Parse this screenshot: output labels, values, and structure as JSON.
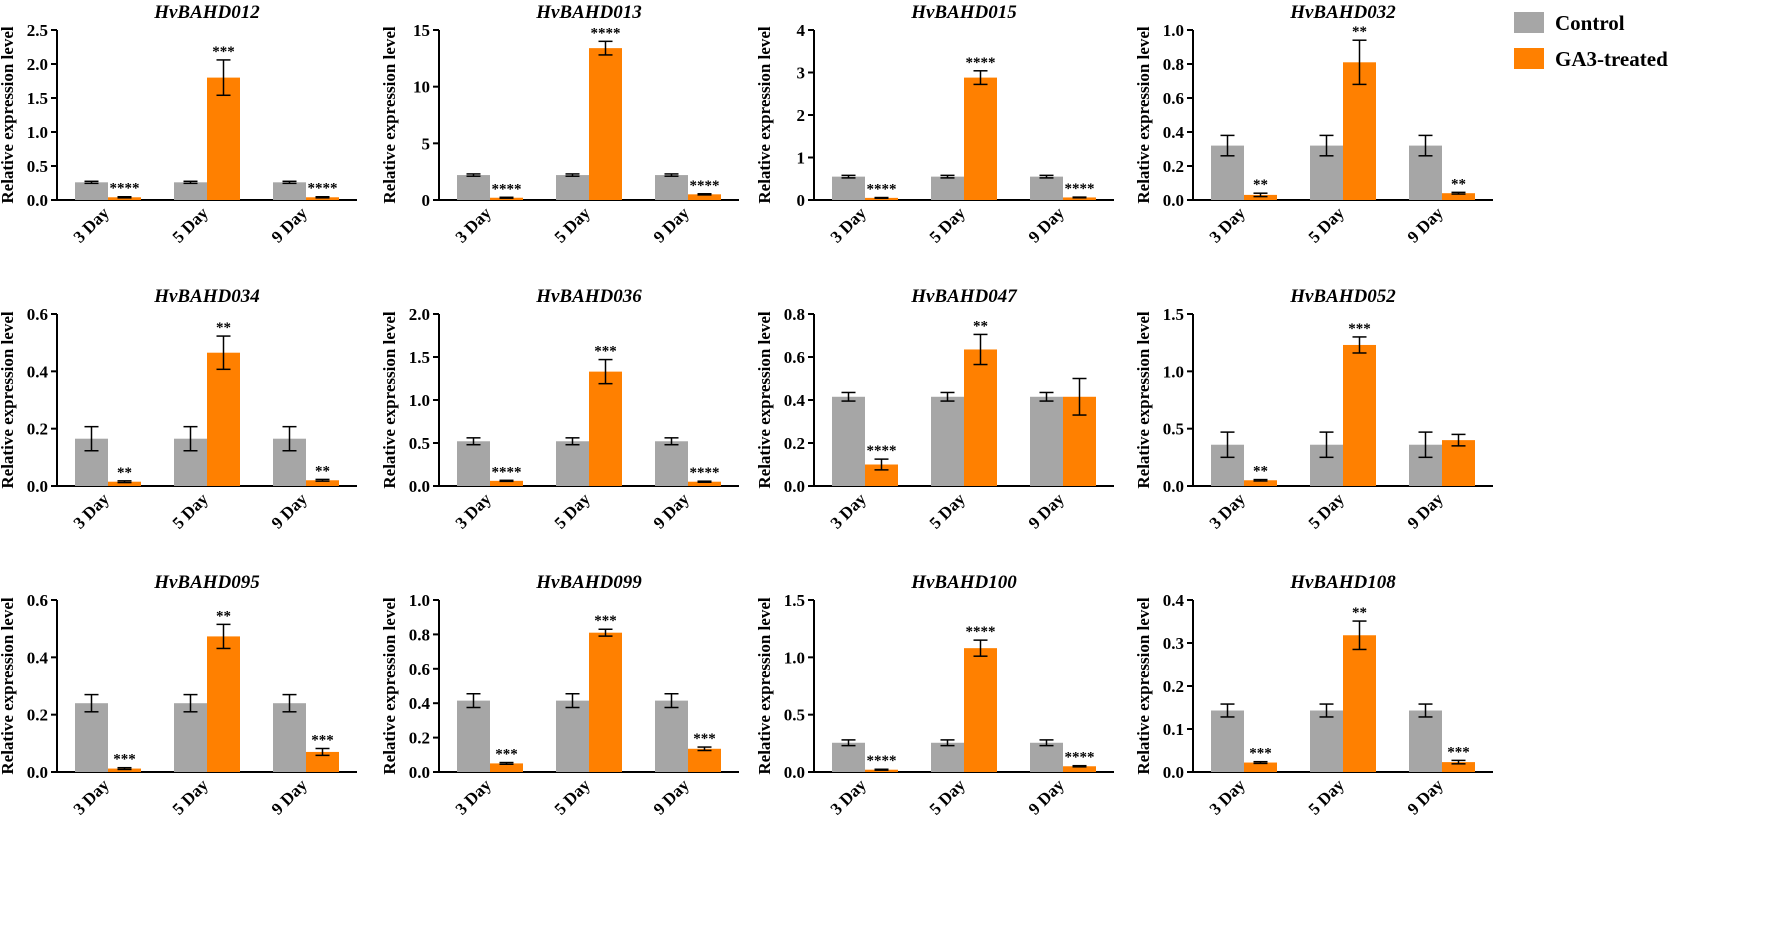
{
  "chart_data": [
    {
      "type": "bar",
      "title": "HvBAHD012",
      "ylabel": "Relative expression level",
      "categories": [
        "3 Day",
        "5 Day",
        "9 Day"
      ],
      "ylim": [
        0,
        2.5
      ],
      "yticks": [
        "0.0",
        "0.5",
        "1.0",
        "1.5",
        "2.0",
        "2.5"
      ],
      "yticks_v": [
        0,
        0.5,
        1,
        1.5,
        2,
        2.5
      ],
      "series": [
        {
          "name": "Control",
          "values": [
            0.26,
            0.26,
            0.26
          ],
          "errors": [
            0.015,
            0.015,
            0.015
          ]
        },
        {
          "name": "GA3-treated",
          "values": [
            0.04,
            1.8,
            0.04
          ],
          "errors": [
            0.008,
            0.26,
            0.008
          ],
          "sig": [
            "****",
            "***",
            "****"
          ]
        }
      ]
    },
    {
      "type": "bar",
      "title": "HvBAHD013",
      "ylabel": "Relative expression level",
      "categories": [
        "3 Day",
        "5 Day",
        "9 Day"
      ],
      "ylim": [
        0,
        15
      ],
      "yticks": [
        "0",
        "5",
        "10",
        "15"
      ],
      "yticks_v": [
        0,
        5,
        10,
        15
      ],
      "series": [
        {
          "name": "Control",
          "values": [
            2.2,
            2.2,
            2.2
          ],
          "errors": [
            0.1,
            0.1,
            0.1
          ]
        },
        {
          "name": "GA3-treated",
          "values": [
            0.2,
            13.4,
            0.5
          ],
          "errors": [
            0.04,
            0.6,
            0.05
          ],
          "sig": [
            "****",
            "****",
            "****"
          ]
        }
      ]
    },
    {
      "type": "bar",
      "title": "HvBAHD015",
      "ylabel": "Relative expression level",
      "categories": [
        "3 Day",
        "5 Day",
        "9 Day"
      ],
      "ylim": [
        0,
        4
      ],
      "yticks": [
        "0",
        "1",
        "2",
        "3",
        "4"
      ],
      "yticks_v": [
        0,
        1,
        2,
        3,
        4
      ],
      "series": [
        {
          "name": "Control",
          "values": [
            0.55,
            0.55,
            0.55
          ],
          "errors": [
            0.03,
            0.03,
            0.03
          ]
        },
        {
          "name": "GA3-treated",
          "values": [
            0.05,
            2.88,
            0.06
          ],
          "errors": [
            0.008,
            0.16,
            0.008
          ],
          "sig": [
            "****",
            "****",
            "****"
          ]
        }
      ]
    },
    {
      "type": "bar",
      "title": "HvBAHD032",
      "ylabel": "Relative expression level",
      "categories": [
        "3 Day",
        "5 Day",
        "9 Day"
      ],
      "ylim": [
        0,
        1.0
      ],
      "yticks": [
        "0.0",
        "0.2",
        "0.4",
        "0.6",
        "0.8",
        "1.0"
      ],
      "yticks_v": [
        0,
        0.2,
        0.4,
        0.6,
        0.8,
        1.0
      ],
      "series": [
        {
          "name": "Control",
          "values": [
            0.32,
            0.32,
            0.32
          ],
          "errors": [
            0.06,
            0.06,
            0.06
          ]
        },
        {
          "name": "GA3-treated",
          "values": [
            0.03,
            0.81,
            0.04
          ],
          "errors": [
            0.01,
            0.13,
            0.005
          ],
          "sig": [
            "**",
            "**",
            "**"
          ]
        }
      ]
    },
    {
      "type": "bar",
      "title": "HvBAHD034",
      "ylabel": "Relative expression level",
      "categories": [
        "3 Day",
        "5 Day",
        "9 Day"
      ],
      "ylim": [
        0,
        0.6
      ],
      "yticks": [
        "0.0",
        "0.2",
        "0.4",
        "0.6"
      ],
      "yticks_v": [
        0,
        0.2,
        0.4,
        0.6
      ],
      "series": [
        {
          "name": "Control",
          "values": [
            0.165,
            0.165,
            0.165
          ],
          "errors": [
            0.042,
            0.042,
            0.042
          ]
        },
        {
          "name": "GA3-treated",
          "values": [
            0.015,
            0.465,
            0.02
          ],
          "errors": [
            0.003,
            0.058,
            0.003
          ],
          "sig": [
            "**",
            "**",
            "**"
          ]
        }
      ]
    },
    {
      "type": "bar",
      "title": "HvBAHD036",
      "ylabel": "Relative expression level",
      "categories": [
        "3 Day",
        "5 Day",
        "9 Day"
      ],
      "ylim": [
        0,
        2.0
      ],
      "yticks": [
        "0.0",
        "0.5",
        "1.0",
        "1.5",
        "2.0"
      ],
      "yticks_v": [
        0,
        0.5,
        1,
        1.5,
        2
      ],
      "series": [
        {
          "name": "Control",
          "values": [
            0.52,
            0.52,
            0.52
          ],
          "errors": [
            0.04,
            0.04,
            0.04
          ]
        },
        {
          "name": "GA3-treated",
          "values": [
            0.06,
            1.33,
            0.05
          ],
          "errors": [
            0.006,
            0.14,
            0.006
          ],
          "sig": [
            "****",
            "***",
            "****"
          ]
        }
      ]
    },
    {
      "type": "bar",
      "title": "HvBAHD047",
      "ylabel": "Relative expression level",
      "categories": [
        "3 Day",
        "5 Day",
        "9 Day"
      ],
      "ylim": [
        0,
        0.8
      ],
      "yticks": [
        "0.0",
        "0.2",
        "0.4",
        "0.6",
        "0.8"
      ],
      "yticks_v": [
        0,
        0.2,
        0.4,
        0.6,
        0.8
      ],
      "series": [
        {
          "name": "Control",
          "values": [
            0.415,
            0.415,
            0.415
          ],
          "errors": [
            0.02,
            0.02,
            0.02
          ]
        },
        {
          "name": "GA3-treated",
          "values": [
            0.1,
            0.635,
            0.415
          ],
          "errors": [
            0.025,
            0.07,
            0.085
          ],
          "sig": [
            "****",
            "**",
            ""
          ]
        }
      ]
    },
    {
      "type": "bar",
      "title": "HvBAHD052",
      "ylabel": "Relative expression level",
      "categories": [
        "3 Day",
        "5 Day",
        "9 Day"
      ],
      "ylim": [
        0,
        1.5
      ],
      "yticks": [
        "0.0",
        "0.5",
        "1.0",
        "1.5"
      ],
      "yticks_v": [
        0,
        0.5,
        1,
        1.5
      ],
      "series": [
        {
          "name": "Control",
          "values": [
            0.36,
            0.36,
            0.36
          ],
          "errors": [
            0.11,
            0.11,
            0.11
          ]
        },
        {
          "name": "GA3-treated",
          "values": [
            0.05,
            1.23,
            0.4
          ],
          "errors": [
            0.006,
            0.07,
            0.05
          ],
          "sig": [
            "**",
            "***",
            ""
          ]
        }
      ]
    },
    {
      "type": "bar",
      "title": "HvBAHD095",
      "ylabel": "Relative expression level",
      "categories": [
        "3 Day",
        "5 Day",
        "9 Day"
      ],
      "ylim": [
        0,
        0.6
      ],
      "yticks": [
        "0.0",
        "0.2",
        "0.4",
        "0.6"
      ],
      "yticks_v": [
        0,
        0.2,
        0.4,
        0.6
      ],
      "series": [
        {
          "name": "Control",
          "values": [
            0.24,
            0.24,
            0.24
          ],
          "errors": [
            0.03,
            0.03,
            0.03
          ]
        },
        {
          "name": "GA3-treated",
          "values": [
            0.012,
            0.473,
            0.07
          ],
          "errors": [
            0.003,
            0.042,
            0.012
          ],
          "sig": [
            "***",
            "**",
            "***"
          ]
        }
      ]
    },
    {
      "type": "bar",
      "title": "HvBAHD099",
      "ylabel": "Relative expression level",
      "categories": [
        "3 Day",
        "5 Day",
        "9 Day"
      ],
      "ylim": [
        0,
        1.0
      ],
      "yticks": [
        "0.0",
        "0.2",
        "0.4",
        "0.6",
        "0.8",
        "1.0"
      ],
      "yticks_v": [
        0,
        0.2,
        0.4,
        0.6,
        0.8,
        1.0
      ],
      "series": [
        {
          "name": "Control",
          "values": [
            0.415,
            0.415,
            0.415
          ],
          "errors": [
            0.04,
            0.04,
            0.04
          ]
        },
        {
          "name": "GA3-treated",
          "values": [
            0.05,
            0.81,
            0.135
          ],
          "errors": [
            0.005,
            0.02,
            0.01
          ],
          "sig": [
            "***",
            "***",
            "***"
          ]
        }
      ]
    },
    {
      "type": "bar",
      "title": "HvBAHD100",
      "ylabel": "Relative expression level",
      "categories": [
        "3 Day",
        "5 Day",
        "9 Day"
      ],
      "ylim": [
        0,
        1.5
      ],
      "yticks": [
        "0.0",
        "0.5",
        "1.0",
        "1.5"
      ],
      "yticks_v": [
        0,
        0.5,
        1,
        1.5
      ],
      "series": [
        {
          "name": "Control",
          "values": [
            0.255,
            0.255,
            0.255
          ],
          "errors": [
            0.025,
            0.025,
            0.025
          ]
        },
        {
          "name": "GA3-treated",
          "values": [
            0.02,
            1.08,
            0.05
          ],
          "errors": [
            0.004,
            0.07,
            0.005
          ],
          "sig": [
            "****",
            "****",
            "****"
          ]
        }
      ]
    },
    {
      "type": "bar",
      "title": "HvBAHD108",
      "ylabel": "Relative expression level",
      "categories": [
        "3 Day",
        "5 Day",
        "9 Day"
      ],
      "ylim": [
        0,
        0.4
      ],
      "yticks": [
        "0.0",
        "0.1",
        "0.2",
        "0.3",
        "0.4"
      ],
      "yticks_v": [
        0,
        0.1,
        0.2,
        0.3,
        0.4
      ],
      "series": [
        {
          "name": "Control",
          "values": [
            0.143,
            0.143,
            0.143
          ],
          "errors": [
            0.015,
            0.015,
            0.015
          ]
        },
        {
          "name": "GA3-treated",
          "values": [
            0.022,
            0.318,
            0.023
          ],
          "errors": [
            0.002,
            0.033,
            0.004
          ],
          "sig": [
            "***",
            "**",
            "***"
          ]
        }
      ]
    }
  ],
  "legend": {
    "items": [
      {
        "label": "Control",
        "color": "#A6A6A6"
      },
      {
        "label": "GA3-treated",
        "color": "#FF8000"
      }
    ]
  },
  "colors": {
    "control": "#A6A6A6",
    "treated": "#FF8000",
    "axis": "#000000"
  }
}
